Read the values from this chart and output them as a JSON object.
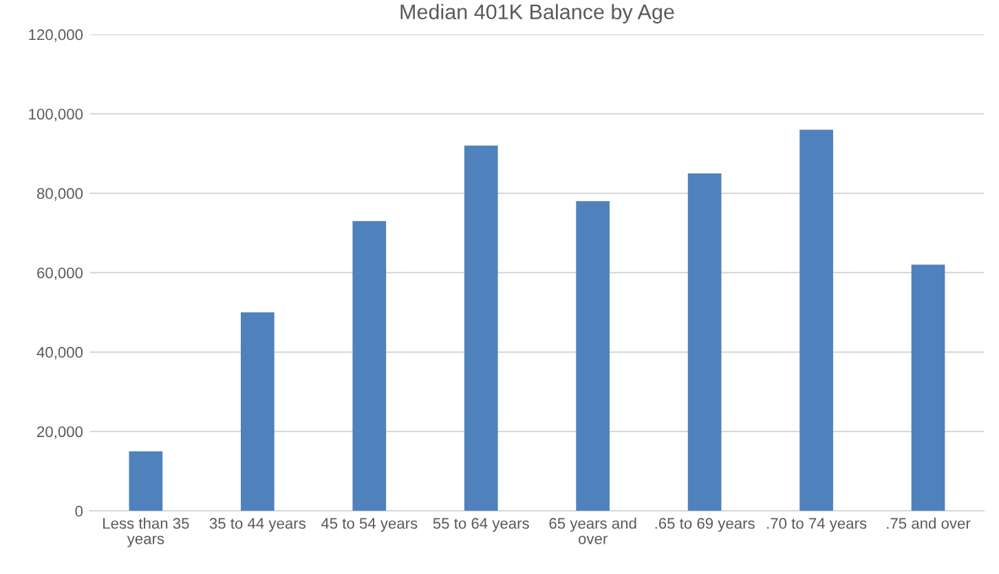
{
  "chart_data": {
    "type": "bar",
    "title": "Median 401K Balance by Age",
    "categories": [
      "Less than 35 years",
      "35 to 44 years",
      "45 to 54 years",
      "55 to 64 years",
      "65 years and over",
      ".65 to 69 years",
      ".70 to 74 years",
      ".75 and over"
    ],
    "values": [
      15000,
      50000,
      73000,
      92000,
      78000,
      85000,
      96000,
      62000
    ],
    "color": "#4f81bd",
    "ylim": [
      0,
      120000
    ],
    "yticks": [
      {
        "value": 0,
        "label": "0"
      },
      {
        "value": 20000,
        "label": "20,000"
      },
      {
        "value": 40000,
        "label": "40,000"
      },
      {
        "value": 60000,
        "label": "60,000"
      },
      {
        "value": 80000,
        "label": "80,000"
      },
      {
        "value": 100000,
        "label": "100,000"
      },
      {
        "value": 120000,
        "label": "120,000"
      }
    ],
    "grid": "y"
  }
}
